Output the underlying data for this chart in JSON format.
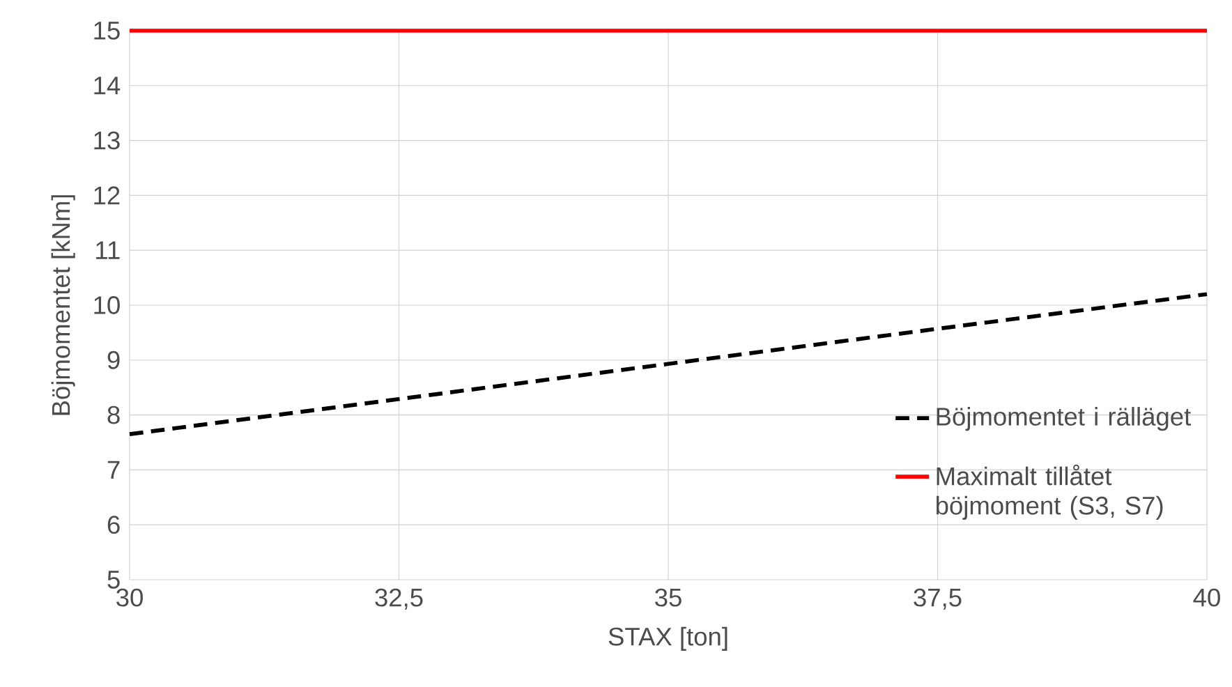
{
  "chart_data": {
    "type": "line",
    "xlabel": "STAX [ton]",
    "ylabel": "Böjmomentet [kNm]",
    "xlim": [
      30,
      40
    ],
    "ylim": [
      5,
      15
    ],
    "xticks": [
      30,
      {
        "value": 32.5,
        "label": "32,5"
      },
      35,
      {
        "value": 37.5,
        "label": "37,5"
      },
      40
    ],
    "yticks": [
      5,
      6,
      7,
      8,
      9,
      10,
      11,
      12,
      13,
      14,
      15
    ],
    "grid": true,
    "legend": "right",
    "marker": "none",
    "series": [
      {
        "name": "Böjmomentet i rälläget",
        "color": "#000000",
        "line_style": "dashed",
        "x": [
          30,
          32.5,
          35,
          37.5,
          40
        ],
        "values": [
          7.65,
          8.29,
          8.93,
          9.57,
          10.2
        ]
      },
      {
        "name": "Maximalt tillåtet böjmoment (S3, S7)",
        "color": "#ff0000",
        "line_style": "solid",
        "x": [
          30,
          40
        ],
        "values": [
          15,
          15
        ]
      }
    ]
  }
}
